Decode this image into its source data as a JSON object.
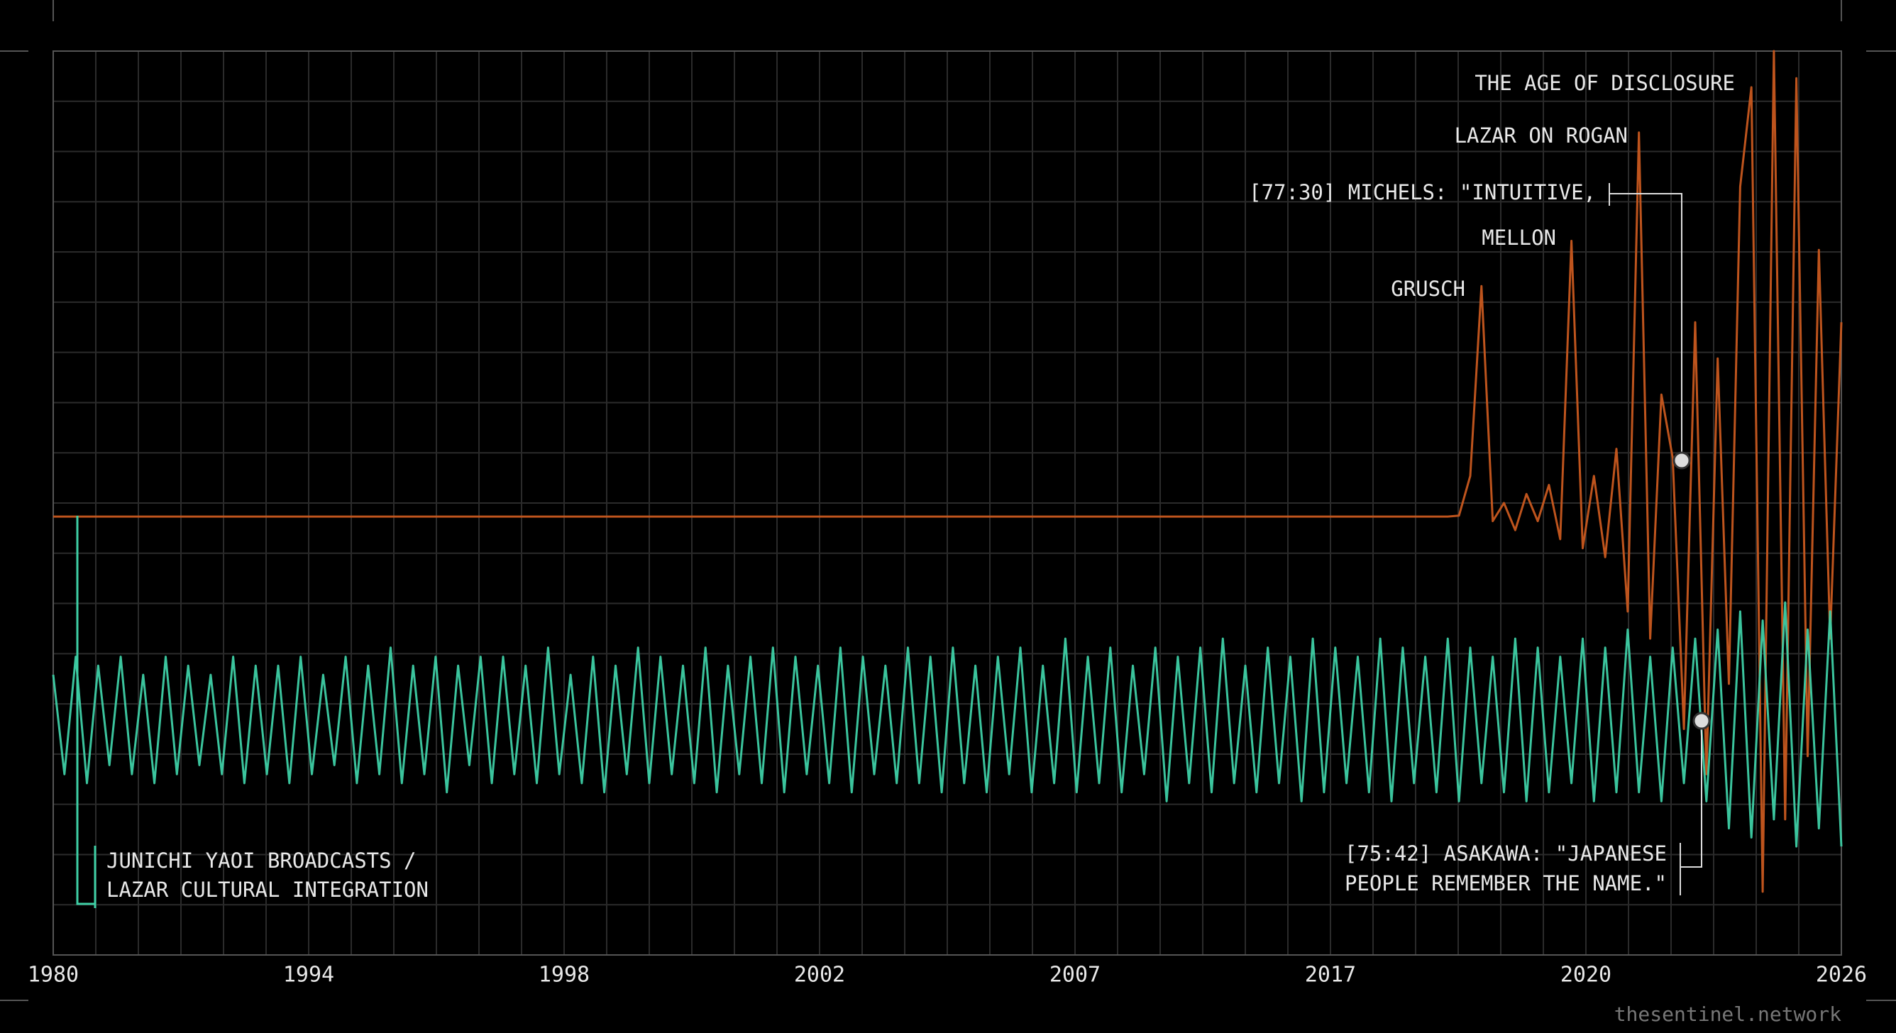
{
  "chart_data": {
    "type": "line",
    "xtick_labels": [
      "1980",
      "1994",
      "1998",
      "2002",
      "2007",
      "2017",
      "2020",
      "2026"
    ],
    "ylim": [
      0,
      100
    ],
    "grid": true,
    "series": [
      {
        "color": "#c8581f",
        "values": [
          48.5,
          48.5,
          48.5,
          48.5,
          48.5,
          48.5,
          48.5,
          48.5,
          48.5,
          48.5,
          48.5,
          48.5,
          48.5,
          48.5,
          48.5,
          48.5,
          48.5,
          48.5,
          48.5,
          48.5,
          48.5,
          48.5,
          48.5,
          48.5,
          48.5,
          48.5,
          48.5,
          48.5,
          48.5,
          48.5,
          48.5,
          48.5,
          48.5,
          48.5,
          48.5,
          48.5,
          48.5,
          48.5,
          48.5,
          48.5,
          48.5,
          48.5,
          48.5,
          48.5,
          48.5,
          48.5,
          48.5,
          48.5,
          48.5,
          48.5,
          48.5,
          48.5,
          48.5,
          48.5,
          48.5,
          48.5,
          48.5,
          48.5,
          48.5,
          48.5,
          48.5,
          48.5,
          48.5,
          48.5,
          48.5,
          48.5,
          48.5,
          48.5,
          48.5,
          48.5,
          48.5,
          48.5,
          48.5,
          48.5,
          48.5,
          48.5,
          48.5,
          48.5,
          48.5,
          48.5,
          48.5,
          48.5,
          48.5,
          48.5,
          48.5,
          48.5,
          48.5,
          48.5,
          48.5,
          48.5,
          48.5,
          48.5,
          48.5,
          48.5,
          48.5,
          48.5,
          48.5,
          48.5,
          48.5,
          48.5,
          48.5,
          48.5,
          48.5,
          48.5,
          48.5,
          48.5,
          48.5,
          48.5,
          48.5,
          48.5,
          48.5,
          48.5,
          48.5,
          48.5,
          48.5,
          48.5,
          48.5,
          48.5,
          48.5,
          48.5,
          48.5,
          48.5,
          48.5,
          48.5,
          48.5,
          48.6,
          53,
          74,
          48,
          50,
          47,
          51,
          48,
          52,
          46,
          79,
          45,
          53,
          44,
          56,
          38,
          91,
          35,
          62,
          55,
          25,
          70,
          20,
          66,
          30,
          85,
          96,
          7,
          100,
          15,
          97,
          22,
          78,
          35,
          70
        ]
      },
      {
        "color": "#3ecfa5",
        "values": [
          31,
          20,
          33,
          19,
          32,
          21,
          33,
          20,
          31,
          19,
          33,
          20,
          32,
          21,
          31,
          20,
          33,
          19,
          32,
          20,
          32,
          19,
          33,
          20,
          31,
          21,
          33,
          19,
          32,
          20,
          34,
          19,
          32,
          20,
          33,
          18,
          32,
          21,
          33,
          19,
          33,
          20,
          32,
          19,
          34,
          20,
          31,
          19,
          33,
          18,
          32,
          20,
          34,
          19,
          33,
          20,
          32,
          19,
          34,
          18,
          32,
          20,
          33,
          19,
          34,
          18,
          33,
          20,
          32,
          19,
          34,
          18,
          33,
          20,
          32,
          19,
          34,
          19,
          33,
          18,
          34,
          19,
          32,
          18,
          33,
          20,
          34,
          18,
          32,
          19,
          35,
          18,
          33,
          19,
          34,
          18,
          32,
          20,
          34,
          17,
          33,
          19,
          34,
          18,
          35,
          19,
          32,
          18,
          34,
          19,
          33,
          17,
          35,
          18,
          34,
          19,
          33,
          18,
          35,
          17,
          34,
          19,
          33,
          18,
          35,
          17,
          34,
          19,
          33,
          18,
          35,
          17,
          34,
          18,
          33,
          19,
          35,
          17,
          34,
          18,
          36,
          18,
          33,
          17,
          34,
          19,
          35,
          17,
          36,
          14,
          38,
          13,
          37,
          15,
          39,
          12,
          36,
          14,
          38,
          12
        ]
      }
    ],
    "annotations": [
      "THE AGE OF DISCLOSURE",
      "LAZAR ON ROGAN",
      "[77:30] MICHELS: \"INTUITIVE,",
      "MELLON",
      "GRUSCH",
      "[75:42] ASAKAWA: \"JAPANESE",
      "PEOPLE REMEMBER THE NAME.\"",
      "JUNICHI YAOI BROADCASTS /",
      "LAZAR CULTURAL INTEGRATION"
    ],
    "watermark": "thesentinel.network"
  }
}
